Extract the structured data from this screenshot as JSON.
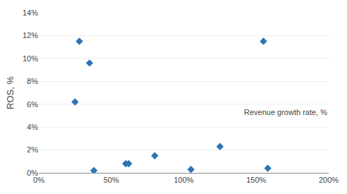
{
  "chart_data": {
    "type": "scatter",
    "x": [
      0.25,
      0.28,
      0.35,
      0.38,
      0.6,
      0.62,
      0.8,
      1.05,
      1.25,
      1.55,
      1.58
    ],
    "values": [
      0.062,
      0.115,
      0.096,
      0.002,
      0.008,
      0.008,
      0.015,
      0.003,
      0.023,
      0.115,
      0.004
    ],
    "color": "#2E75B6",
    "marker": "diamond",
    "xlabel": "Revenue growth rate, %",
    "ylabel": "ROS, %",
    "xlim": [
      0.0,
      2.0
    ],
    "ylim": [
      0.0,
      0.14
    ],
    "xticks": [
      {
        "value": 0.0,
        "label": "0%"
      },
      {
        "value": 0.5,
        "label": "50%"
      },
      {
        "value": 1.0,
        "label": "100%"
      },
      {
        "value": 1.5,
        "label": "150%"
      },
      {
        "value": 2.0,
        "label": "200%"
      }
    ],
    "yticks": [
      {
        "value": 0.0,
        "label": "0%"
      },
      {
        "value": 0.02,
        "label": "2%"
      },
      {
        "value": 0.04,
        "label": "4%"
      },
      {
        "value": 0.06,
        "label": "6%"
      },
      {
        "value": 0.08,
        "label": "8%"
      },
      {
        "value": 0.1,
        "label": "10%"
      },
      {
        "value": 0.12,
        "label": "12%"
      },
      {
        "value": 0.14,
        "label": "14%"
      }
    ],
    "grid": "y"
  }
}
